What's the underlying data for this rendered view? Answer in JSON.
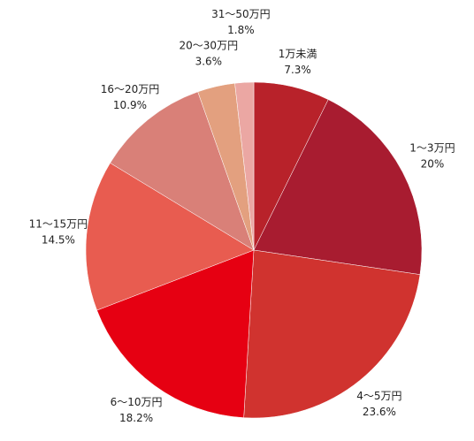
{
  "chart_data": {
    "type": "pie",
    "categories": [
      "1万未満",
      "1～3万円",
      "4～5万円",
      "6～10万円",
      "11～15万円",
      "16～20万円",
      "20～30万円",
      "31～50万円"
    ],
    "values": [
      7.3,
      20,
      23.6,
      18.2,
      14.5,
      10.9,
      3.6,
      1.8
    ],
    "value_labels": [
      "7.3%",
      "20%",
      "23.6%",
      "18.2%",
      "14.5%",
      "10.9%",
      "3.6%",
      "1.8%"
    ],
    "colors": [
      "#b8222a",
      "#a81c30",
      "#d0332f",
      "#e60012",
      "#e85c50",
      "#d98078",
      "#e3a07f",
      "#eba7a3"
    ]
  }
}
